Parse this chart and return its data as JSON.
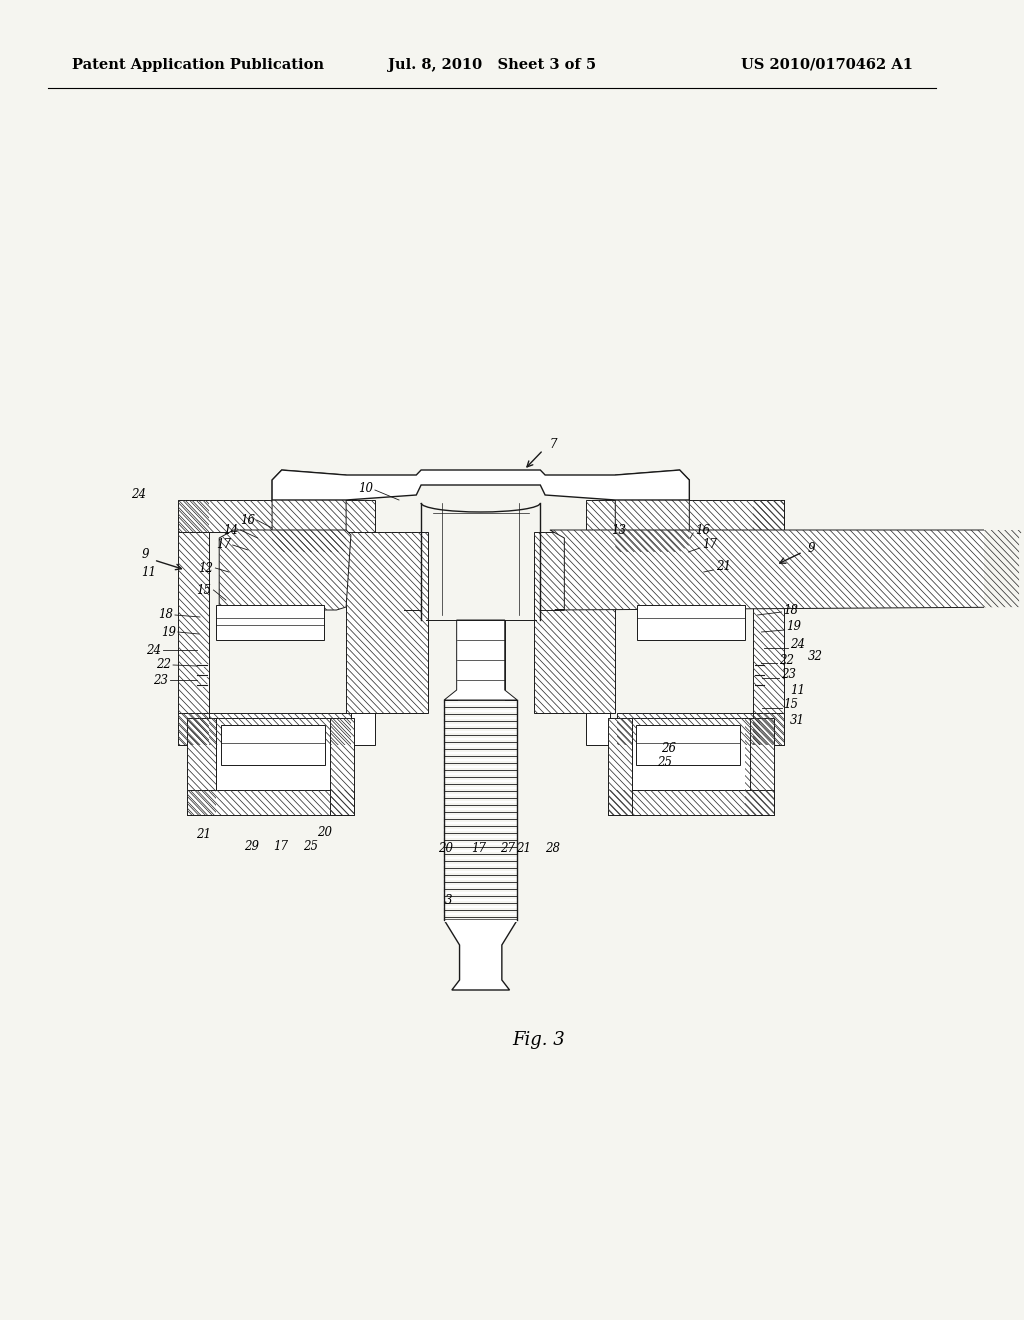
{
  "background_color": "#f5f5f0",
  "page_color": "#f5f5f0",
  "header_left": "Patent Application Publication",
  "header_center": "Jul. 8, 2010   Sheet 3 of 5",
  "header_right": "US 2010/0170462 A1",
  "figure_label": "Fig. 3",
  "line_color": "#1a1a1a",
  "hatch_lw": 0.55,
  "main_lw": 1.0,
  "thin_lw": 0.7,
  "label_fontsize": 8.5,
  "header_fontsize": 10.5,
  "fig_label_fontsize": 13
}
